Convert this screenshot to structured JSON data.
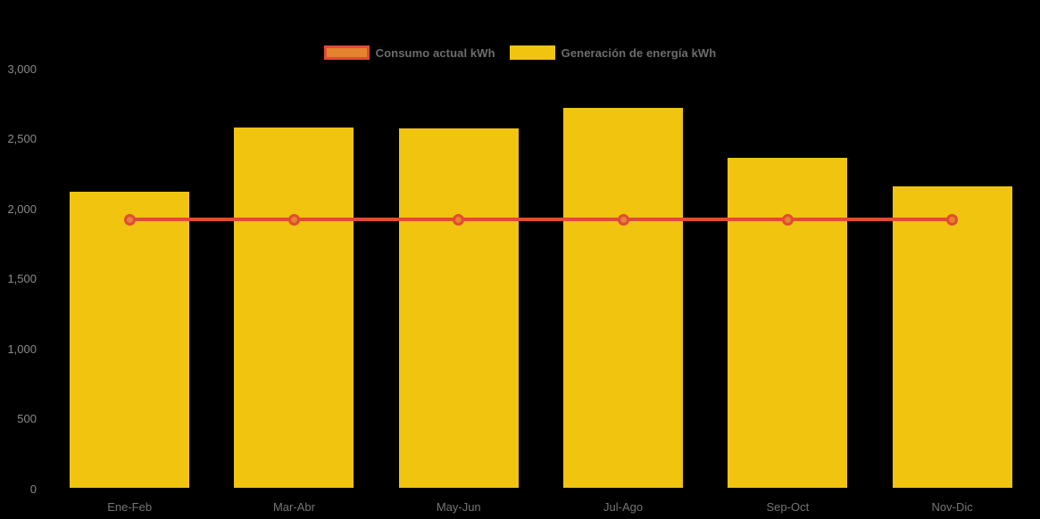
{
  "chart_data": {
    "type": "bar",
    "title": "",
    "xlabel": "",
    "ylabel": "",
    "categories": [
      "Ene-Feb",
      "Mar-Abr",
      "May-Jun",
      "Jul-Ago",
      "Sep-Oct",
      "Nov-Dic"
    ],
    "series": [
      {
        "name": "Consumo actual kWh",
        "type": "line",
        "values": [
          1920,
          1920,
          1920,
          1920,
          1920,
          1920
        ],
        "line_color": "#e14b33",
        "marker_fill": "#e5832e",
        "marker_border": "#e14b33"
      },
      {
        "name": "Generación de energía kWh",
        "type": "bar",
        "values": [
          2120,
          2580,
          2570,
          2720,
          2360,
          2160
        ],
        "color": "#f1c40f"
      }
    ],
    "ylim": [
      0,
      3000
    ],
    "yticks": [
      {
        "value": 0,
        "label": "0"
      },
      {
        "value": 500,
        "label": "500"
      },
      {
        "value": 1000,
        "label": "1,000"
      },
      {
        "value": 1500,
        "label": "1,500"
      },
      {
        "value": 2000,
        "label": "2,000"
      },
      {
        "value": 2500,
        "label": "2,500"
      },
      {
        "value": 3000,
        "label": "3,000"
      }
    ],
    "grid": "off",
    "legend_position": "top-center",
    "background": "#000000",
    "axis_text_color": "#8a8a8a",
    "legend_text_color": "#6d6d6d"
  }
}
